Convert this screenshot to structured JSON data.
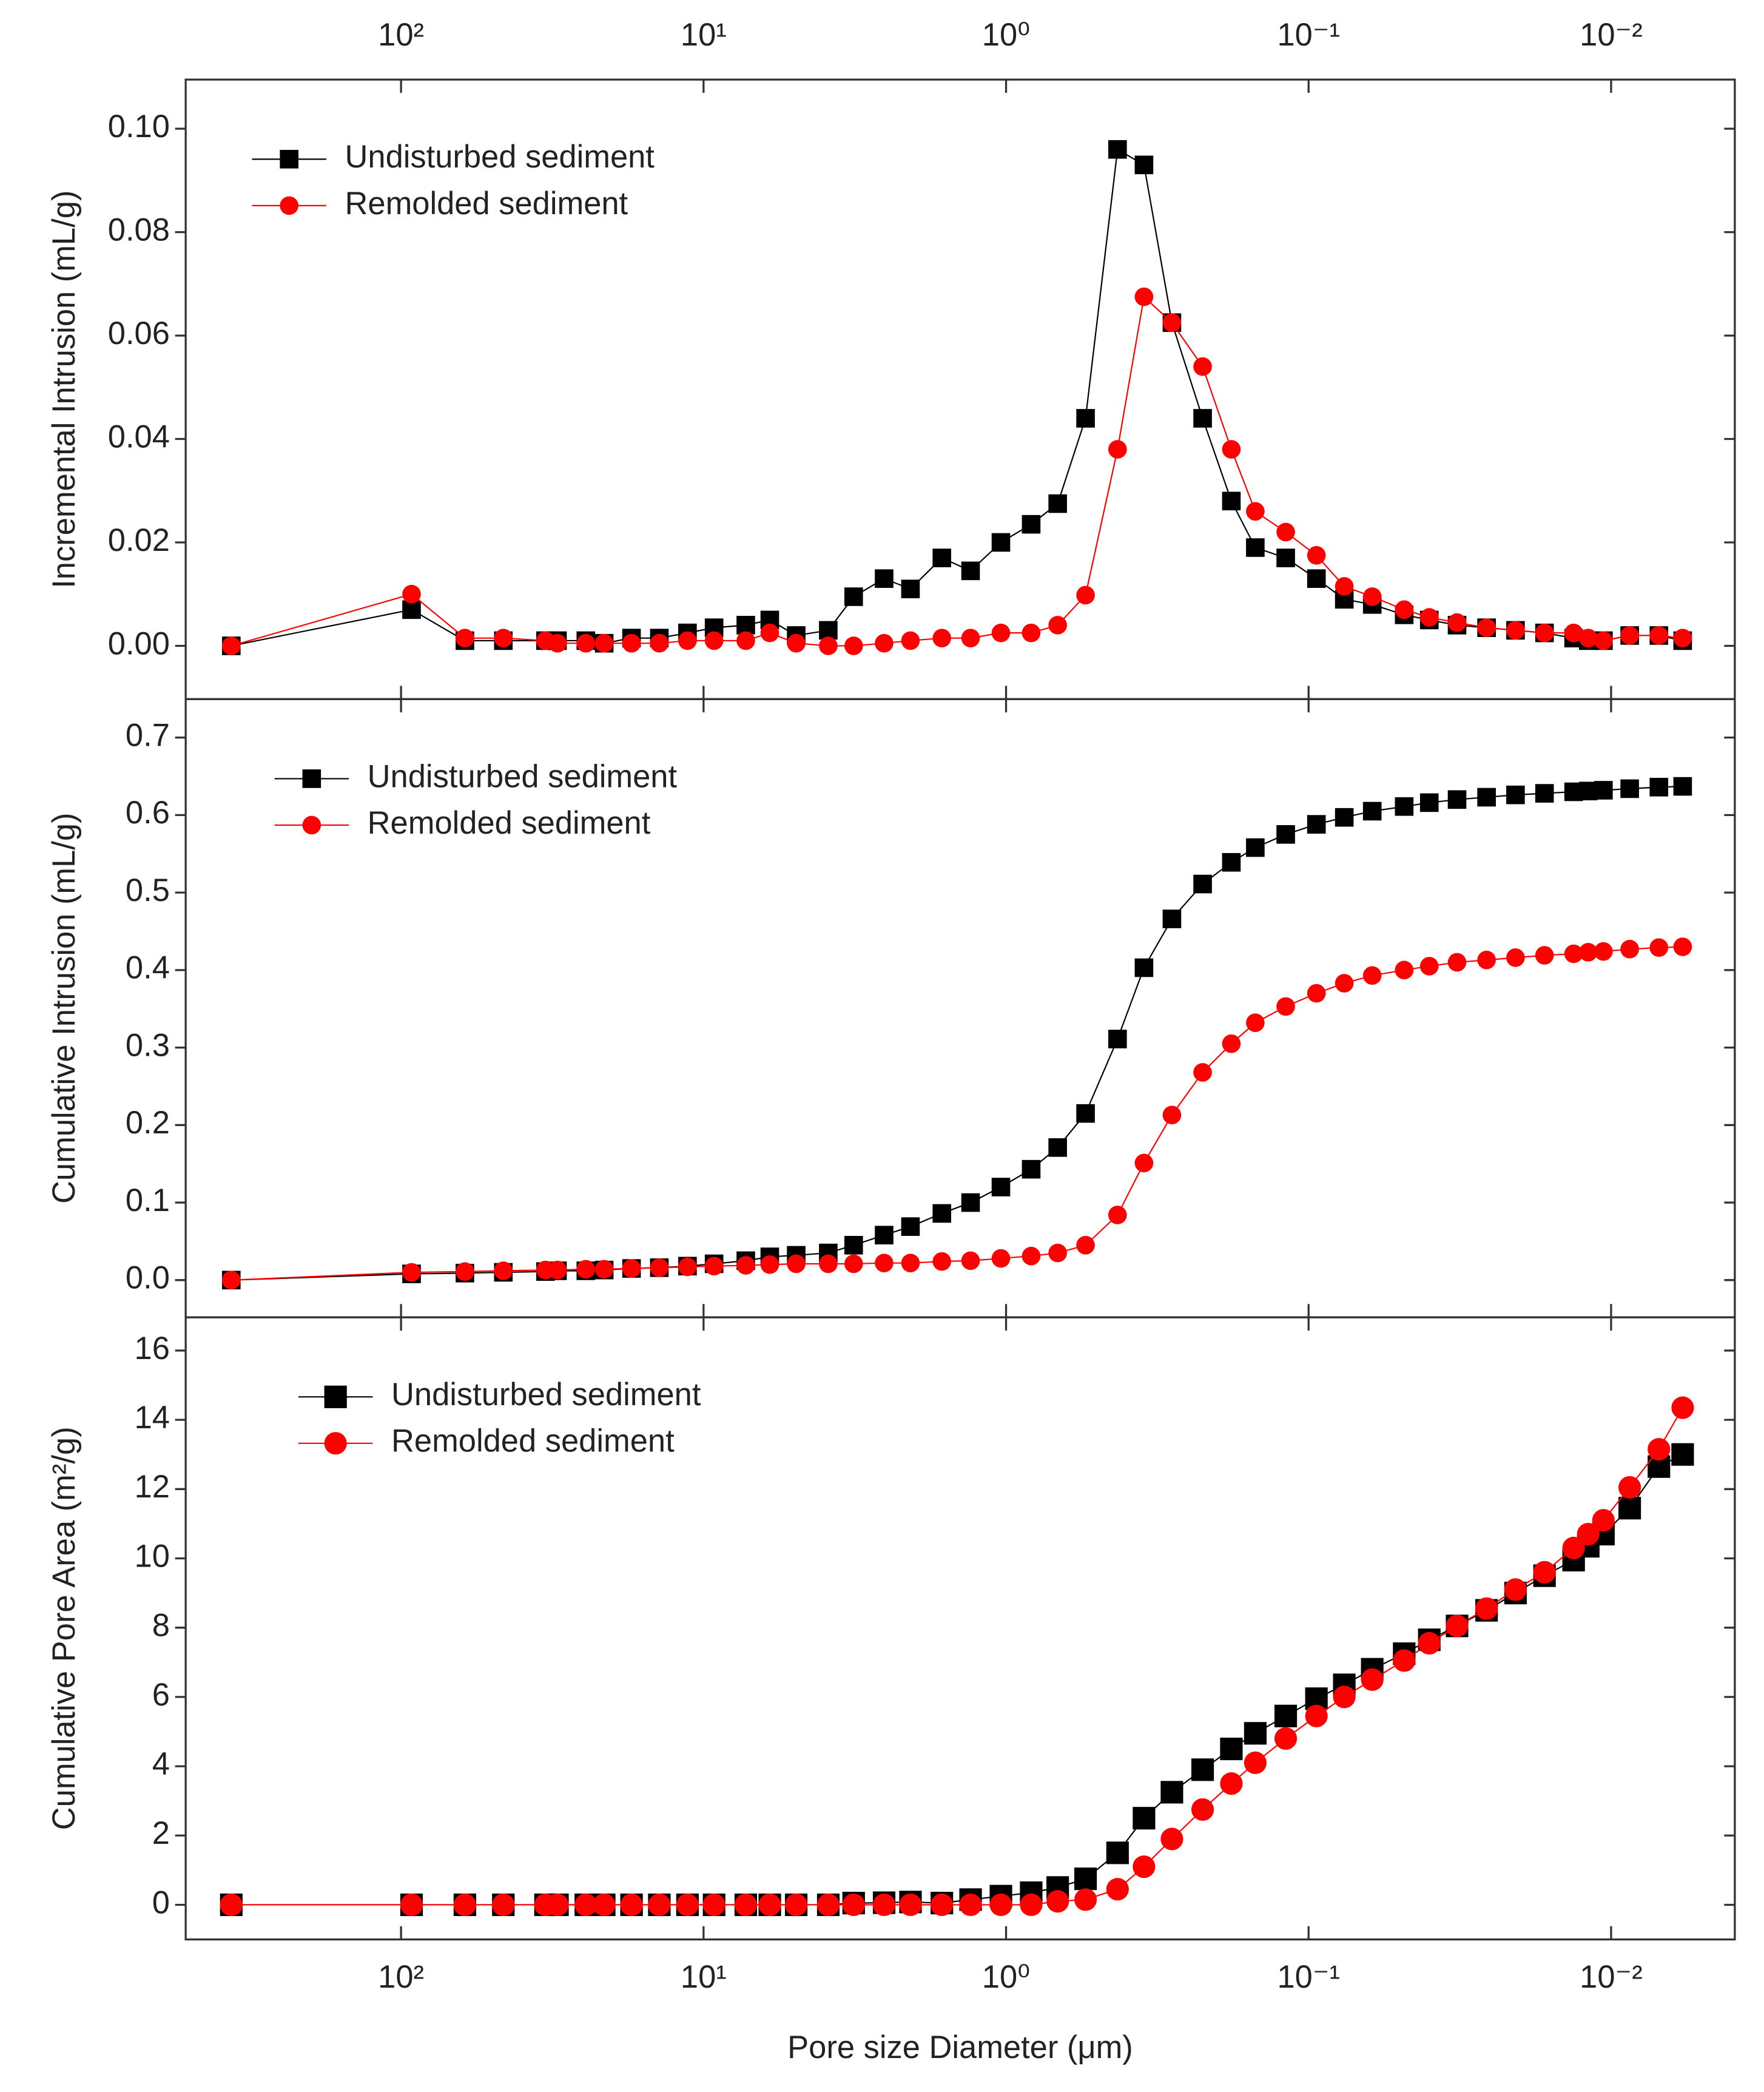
{
  "x_axis": {
    "xlabel": "Pore size Diameter (μm)",
    "log": true,
    "reversed": true,
    "xlim": [
      515,
      0.0039
    ],
    "xticks": [
      {
        "value": 100,
        "label": "10²"
      },
      {
        "value": 10,
        "label": "10¹"
      },
      {
        "value": 1,
        "label": "10⁰"
      },
      {
        "value": 0.1,
        "label": "10⁻¹"
      },
      {
        "value": 0.01,
        "label": "10⁻²"
      }
    ]
  },
  "chart_data": [
    {
      "type": "line",
      "ylabel": "Incremental Intrusion (mL/g)",
      "legend": "upper left",
      "x": [
        364,
        92.3,
        61.5,
        45.9,
        33.3,
        30.4,
        24.5,
        21.3,
        17.3,
        14.0,
        11.3,
        9.23,
        7.25,
        6.04,
        4.94,
        3.87,
        3.19,
        2.53,
        2.07,
        1.63,
        1.31,
        1.04,
        0.826,
        0.675,
        0.546,
        0.428,
        0.35,
        0.283,
        0.224,
        0.18,
        0.15,
        0.119,
        0.0942,
        0.0762,
        0.0616,
        0.0483,
        0.0399,
        0.0323,
        0.0258,
        0.0207,
        0.0166,
        0.0133,
        0.0119,
        0.0106,
        0.00868,
        0.00695,
        0.0058
      ],
      "ylim": [
        -0.0103,
        0.1095
      ],
      "yticks": [
        {
          "value": 0,
          "label": "0.00"
        },
        0.02,
        0.04,
        0.06,
        0.08,
        {
          "value": 0.1,
          "label": "0.10"
        }
      ],
      "series": [
        {
          "name": "Undisturbed sediment",
          "color": "#000000",
          "marker": "square",
          "values": [
            0,
            0.007,
            0.001,
            0.001,
            0.001,
            0.001,
            0.001,
            0.0005,
            0.0015,
            0.0015,
            0.0025,
            0.0035,
            0.004,
            0.005,
            0.002,
            0.003,
            0.0095,
            0.013,
            0.011,
            0.017,
            0.0145,
            0.02,
            0.0235,
            0.0275,
            0.044,
            0.096,
            0.093,
            0.0625,
            0.044,
            0.028,
            0.019,
            0.017,
            0.013,
            0.009,
            0.008,
            0.006,
            0.005,
            0.004,
            0.0035,
            0.003,
            0.0025,
            0.0015,
            0.001,
            0.001,
            0.002,
            0.002,
            0.001
          ]
        },
        {
          "name": "Remolded sediment",
          "color": "#ff0000",
          "marker": "circle",
          "values": [
            0,
            0.01,
            0.0015,
            0.0015,
            0.001,
            0.0005,
            0.0005,
            0.0005,
            0.0005,
            0.0005,
            0.001,
            0.001,
            0.001,
            0.0025,
            0.0005,
            0,
            0,
            0.0005,
            0.001,
            0.0015,
            0.0015,
            0.0025,
            0.0025,
            0.004,
            0.0098,
            0.038,
            0.0675,
            0.0625,
            0.054,
            0.038,
            0.026,
            0.022,
            0.0175,
            0.0115,
            0.0095,
            0.007,
            0.0055,
            0.0045,
            0.0035,
            0.003,
            0.0025,
            0.0025,
            0.0015,
            0.001,
            0.002,
            0.002,
            0.0015
          ]
        }
      ]
    },
    {
      "type": "line",
      "ylabel": "Cumulative Intrusion (mL/g)",
      "legend": "upper left",
      "x": [
        364,
        92.3,
        61.5,
        45.9,
        33.3,
        30.4,
        24.5,
        21.3,
        17.3,
        14.0,
        11.3,
        9.23,
        7.25,
        6.04,
        4.94,
        3.87,
        3.19,
        2.53,
        2.07,
        1.63,
        1.31,
        1.04,
        0.826,
        0.675,
        0.546,
        0.428,
        0.35,
        0.283,
        0.224,
        0.18,
        0.15,
        0.119,
        0.0942,
        0.0762,
        0.0616,
        0.0483,
        0.0399,
        0.0323,
        0.0258,
        0.0207,
        0.0166,
        0.0133,
        0.0119,
        0.0106,
        0.00868,
        0.00695,
        0.0058
      ],
      "ylim": [
        -0.048,
        0.7496
      ],
      "yticks": [
        {
          "value": 0,
          "label": "0.0"
        },
        0.1,
        0.2,
        0.3,
        0.4,
        0.5,
        0.6,
        0.7
      ],
      "series": [
        {
          "name": "Undisturbed sediment",
          "color": "#000000",
          "marker": "square",
          "values": [
            0,
            0.008,
            0.009,
            0.01,
            0.011,
            0.012,
            0.012,
            0.013,
            0.015,
            0.016,
            0.018,
            0.021,
            0.025,
            0.03,
            0.032,
            0.035,
            0.045,
            0.058,
            0.069,
            0.086,
            0.1,
            0.12,
            0.143,
            0.171,
            0.215,
            0.311,
            0.403,
            0.466,
            0.511,
            0.539,
            0.558,
            0.575,
            0.588,
            0.597,
            0.605,
            0.611,
            0.616,
            0.62,
            0.623,
            0.626,
            0.628,
            0.63,
            0.631,
            0.632,
            0.634,
            0.636,
            0.637
          ]
        },
        {
          "name": "Remolded sediment",
          "color": "#ff0000",
          "marker": "circle",
          "values": [
            0,
            0.01,
            0.011,
            0.012,
            0.013,
            0.013,
            0.014,
            0.014,
            0.015,
            0.016,
            0.017,
            0.018,
            0.019,
            0.02,
            0.021,
            0.021,
            0.021,
            0.022,
            0.022,
            0.024,
            0.025,
            0.028,
            0.031,
            0.035,
            0.045,
            0.084,
            0.151,
            0.213,
            0.268,
            0.305,
            0.332,
            0.353,
            0.37,
            0.383,
            0.393,
            0.4,
            0.405,
            0.41,
            0.413,
            0.416,
            0.419,
            0.421,
            0.423,
            0.424,
            0.427,
            0.429,
            0.43
          ]
        }
      ]
    },
    {
      "type": "line",
      "ylabel": "Cumulative Pore Area (m²/g)",
      "legend": "upper left",
      "x": [
        364,
        92.3,
        61.5,
        45.9,
        33.3,
        30.4,
        24.5,
        21.3,
        17.3,
        14.0,
        11.3,
        9.23,
        7.25,
        6.04,
        4.94,
        3.87,
        3.19,
        2.53,
        2.07,
        1.63,
        1.31,
        1.04,
        0.826,
        0.675,
        0.546,
        0.428,
        0.35,
        0.283,
        0.224,
        0.18,
        0.15,
        0.119,
        0.0942,
        0.0762,
        0.0616,
        0.0483,
        0.0399,
        0.0323,
        0.0258,
        0.0207,
        0.0166,
        0.0133,
        0.0119,
        0.0106,
        0.00868,
        0.00695,
        0.0058
      ],
      "ylim": [
        -1.0,
        16.96
      ],
      "yticks": [
        0,
        2,
        4,
        6,
        8,
        10,
        12,
        14,
        16
      ],
      "series": [
        {
          "name": "Undisturbed sediment",
          "color": "#000000",
          "marker": "square",
          "values": [
            0,
            0,
            0,
            0,
            0,
            0,
            0,
            0,
            0,
            0,
            0,
            0,
            0,
            0,
            0,
            0,
            0.05,
            0.06,
            0.08,
            0.05,
            0.15,
            0.25,
            0.35,
            0.5,
            0.75,
            1.5,
            2.5,
            3.25,
            3.9,
            4.5,
            4.95,
            5.45,
            5.95,
            6.35,
            6.8,
            7.25,
            7.65,
            8.05,
            8.5,
            9.0,
            9.5,
            9.95,
            10.35,
            10.7,
            11.45,
            12.65,
            13.0
          ]
        },
        {
          "name": "Remolded sediment",
          "color": "#ff0000",
          "marker": "circle",
          "values": [
            0,
            0,
            0,
            0,
            0,
            0,
            0,
            0,
            0,
            0,
            0,
            0,
            0,
            0,
            0,
            0,
            0,
            0,
            0,
            0,
            0,
            0,
            0,
            0.1,
            0.15,
            0.45,
            1.1,
            1.9,
            2.75,
            3.5,
            4.1,
            4.8,
            5.45,
            6.0,
            6.5,
            7.05,
            7.55,
            8.05,
            8.55,
            9.1,
            9.6,
            10.3,
            10.7,
            11.1,
            12.05,
            13.15,
            14.35
          ]
        }
      ]
    }
  ]
}
